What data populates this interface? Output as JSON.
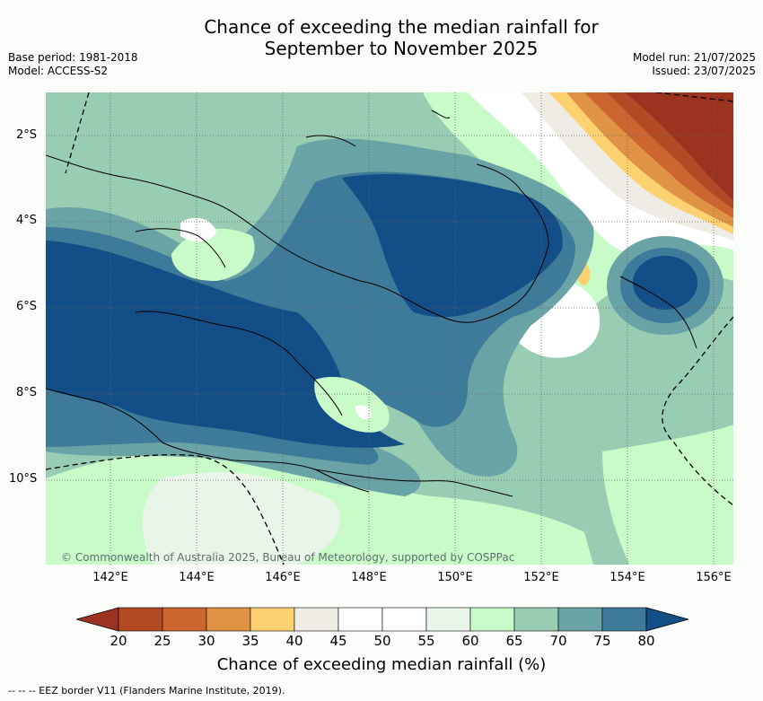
{
  "title_line1": "Chance of exceeding the median rainfall for",
  "title_line2": "September to November 2025",
  "base_period": "Base period: 1981-2018",
  "model": "Model: ACCESS-S2",
  "model_run": "Model run: 21/07/2025",
  "issued": "Issued: 23/07/2025",
  "lat_labels": [
    "2°S",
    "4°S",
    "6°S",
    "8°S",
    "10°S"
  ],
  "lon_labels": [
    "142°E",
    "144°E",
    "146°E",
    "148°E",
    "150°E",
    "152°E",
    "154°E",
    "156°E"
  ],
  "copyright": "© Commonwealth of Australia 2025, Bureau of Meteorology, supported by COSPPac",
  "colorbar": {
    "ticks": [
      "20",
      "25",
      "30",
      "35",
      "40",
      "45",
      "50",
      "55",
      "60",
      "65",
      "70",
      "75",
      "80"
    ],
    "colors": [
      "#9b3320",
      "#b34a25",
      "#cc6530",
      "#e09245",
      "#fdd070",
      "#efece6",
      "#ffffff",
      "#ffffff",
      "#eaf5ea",
      "#c9fbc8",
      "#98ccb3",
      "#6aa3a6",
      "#3e7a9a",
      "#134e86"
    ],
    "label": "Chance of exceeding median rainfall (%)"
  },
  "footer": "-- -- -- EEZ border V11 (Flanders Marine Institute, 2019)."
}
